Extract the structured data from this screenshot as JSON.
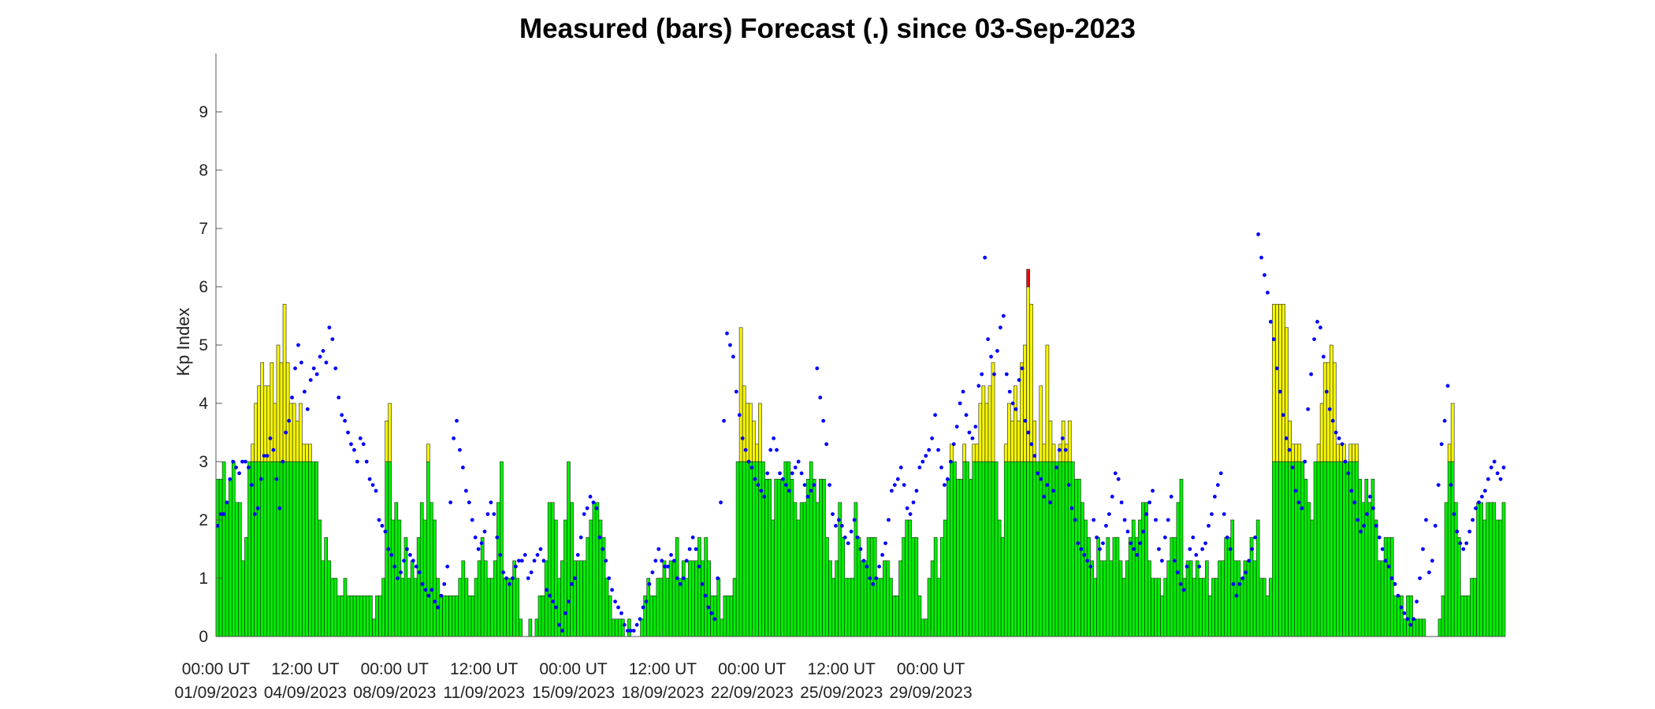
{
  "chart_data": {
    "type": "bar",
    "title": "Measured (bars) Forecast (.) since 03-Sep-2023",
    "ylabel": "Kp Index",
    "xlabel": "",
    "ylim": [
      0,
      10
    ],
    "yticks": [
      0,
      1,
      2,
      3,
      4,
      5,
      6,
      7,
      8,
      9
    ],
    "xtick_labels": [
      {
        "line1": "00:00 UT",
        "line2": "01/09/2023"
      },
      {
        "line1": "12:00 UT",
        "line2": "04/09/2023"
      },
      {
        "line1": "00:00 UT",
        "line2": "08/09/2023"
      },
      {
        "line1": "12:00 UT",
        "line2": "11/09/2023"
      },
      {
        "line1": "00:00 UT",
        "line2": "15/09/2023"
      },
      {
        "line1": "12:00 UT",
        "line2": "18/09/2023"
      },
      {
        "line1": "00:00 UT",
        "line2": "22/09/2023"
      },
      {
        "line1": "12:00 UT",
        "line2": "25/09/2023"
      },
      {
        "line1": "00:00 UT",
        "line2": "29/09/2023"
      }
    ],
    "interval_hours": 3,
    "grid": false,
    "colors": {
      "quiet": "#00ee00",
      "active": "#f5f500",
      "storm": "#ff0000",
      "forecast": "#0000ff",
      "bar_edge": "#222222"
    },
    "thresholds": [
      3,
      6
    ],
    "series": [
      {
        "values": [
          2.7,
          2.7,
          3.0,
          2.3,
          2.7,
          3.0,
          2.3,
          2.3,
          1.3,
          1.7,
          3.0,
          3.3,
          4.0,
          4.3,
          4.7,
          4.3,
          4.3,
          4.7,
          4.0,
          5.0,
          4.7,
          5.7,
          4.7,
          4.0,
          4.0,
          3.7,
          4.0,
          3.3,
          3.3,
          3.3,
          3.0,
          3.0,
          2.0,
          1.3,
          1.7,
          1.3,
          1.0,
          1.0,
          0.7,
          0.7,
          1.0,
          0.7,
          0.7,
          0.7,
          0.7,
          0.7,
          0.7,
          0.7,
          0.7,
          0.3,
          0.7,
          0.7,
          1.0,
          3.7,
          4.0,
          2.0,
          2.3,
          2.0,
          1.0,
          1.7,
          1.0,
          1.3,
          1.0,
          1.7,
          2.3,
          2.0,
          3.3,
          2.3,
          2.0,
          1.0,
          0.7,
          0.7,
          0.7,
          0.7,
          0.7,
          0.7,
          1.0,
          1.3,
          1.0,
          0.7,
          0.7,
          1.0,
          1.3,
          1.7,
          1.3,
          1.0,
          1.0,
          1.3,
          2.3,
          3.0,
          1.0,
          1.0,
          1.0,
          1.3,
          1.0,
          0.3,
          0.0,
          0.0,
          0.3,
          0.0,
          0.3,
          0.7,
          0.7,
          1.3,
          2.3,
          2.3,
          2.0,
          1.0,
          1.3,
          2.0,
          3.0,
          2.3,
          1.3,
          1.3,
          1.3,
          1.3,
          1.7,
          2.0,
          2.3,
          2.3,
          2.0,
          1.7,
          1.0,
          0.7,
          0.3,
          0.3,
          0.3,
          0.3,
          0.0,
          0.3,
          0.0,
          0.0,
          0.0,
          0.3,
          0.7,
          1.0,
          0.7,
          0.7,
          1.0,
          1.0,
          1.3,
          1.0,
          1.3,
          1.3,
          1.7,
          1.0,
          1.3,
          1.0,
          1.3,
          1.3,
          1.3,
          1.7,
          1.3,
          1.7,
          1.3,
          0.7,
          0.7,
          1.0,
          0.3,
          0.7,
          0.7,
          0.7,
          1.0,
          3.0,
          5.3,
          4.3,
          4.0,
          4.0,
          3.7,
          3.3,
          4.0,
          3.0,
          2.7,
          2.7,
          2.0,
          2.7,
          2.7,
          2.7,
          3.0,
          3.0,
          2.7,
          2.3,
          2.0,
          2.3,
          2.3,
          2.7,
          3.0,
          2.7,
          2.3,
          2.7,
          2.7,
          1.7,
          1.3,
          1.0,
          1.3,
          2.3,
          1.7,
          1.0,
          1.0,
          1.0,
          2.3,
          1.7,
          1.3,
          1.3,
          1.7,
          1.7,
          1.7,
          1.0,
          1.0,
          1.3,
          1.3,
          1.0,
          0.7,
          0.7,
          1.3,
          1.7,
          2.0,
          2.0,
          1.7,
          1.7,
          0.7,
          0.3,
          0.3,
          1.0,
          1.3,
          1.7,
          1.0,
          1.7,
          2.0,
          2.7,
          3.3,
          3.0,
          2.7,
          2.7,
          3.3,
          3.0,
          2.7,
          3.3,
          3.3,
          4.0,
          4.3,
          4.0,
          4.3,
          4.7,
          3.0,
          2.0,
          1.7,
          3.3,
          4.0,
          3.7,
          4.3,
          3.7,
          4.7,
          5.0,
          6.3,
          5.7,
          3.7,
          3.0,
          4.3,
          3.3,
          5.0,
          3.7,
          3.3,
          3.0,
          3.3,
          3.7,
          3.3,
          3.7,
          3.0,
          2.7,
          2.7,
          2.3,
          2.0,
          1.7,
          1.3,
          1.0,
          1.7,
          1.3,
          1.3,
          1.7,
          1.3,
          1.7,
          1.7,
          1.3,
          1.0,
          1.3,
          1.7,
          2.0,
          1.7,
          2.0,
          2.3,
          2.3,
          1.3,
          1.0,
          1.0,
          1.0,
          0.7,
          1.0,
          1.3,
          1.7,
          1.7,
          2.3,
          2.7,
          1.0,
          1.3,
          1.3,
          1.0,
          1.3,
          1.0,
          1.0,
          1.3,
          0.7,
          1.0,
          1.0,
          1.3,
          1.3,
          1.7,
          1.7,
          2.0,
          1.3,
          1.3,
          1.0,
          1.3,
          1.3,
          1.7,
          1.3,
          2.0,
          1.0,
          1.0,
          0.7,
          1.0,
          5.7,
          5.7,
          5.7,
          5.7,
          5.3,
          3.7,
          3.3,
          3.3,
          3.3,
          3.0,
          2.7,
          2.3,
          2.0,
          3.0,
          3.3,
          4.0,
          4.7,
          4.7,
          5.0,
          4.7,
          3.3,
          3.3,
          3.3,
          3.0,
          3.3,
          3.3,
          3.3,
          2.7,
          2.3,
          2.7,
          2.3,
          2.7,
          2.0,
          1.3,
          1.3,
          1.7,
          1.7,
          1.7,
          0.7,
          0.7,
          0.7,
          0.3,
          0.7,
          0.7,
          0.3,
          0.3,
          0.3,
          0.3,
          0.0,
          0.0,
          0.0,
          0.0,
          0.3,
          0.7,
          2.3,
          3.3,
          4.0,
          2.3,
          1.7,
          0.7,
          0.7,
          0.7,
          1.0,
          1.0,
          2.3,
          2.3,
          2.0,
          2.3,
          2.3,
          2.3,
          2.0,
          2.0,
          2.3
        ],
        "forecast": [
          1.9,
          2.1,
          2.1,
          2.3,
          2.7,
          3.0,
          2.9,
          2.8,
          3.0,
          3.0,
          2.9,
          2.6,
          2.1,
          2.2,
          2.7,
          3.1,
          3.1,
          3.4,
          3.2,
          2.7,
          2.2,
          3.0,
          3.5,
          3.7,
          4.1,
          4.6,
          5.0,
          4.7,
          4.2,
          3.9,
          4.4,
          4.6,
          4.5,
          4.8,
          4.9,
          4.7,
          5.3,
          5.1,
          4.6,
          4.1,
          3.8,
          3.7,
          3.5,
          3.3,
          3.2,
          3.0,
          3.4,
          3.3,
          3.0,
          2.7,
          2.6,
          2.5,
          2.0,
          1.9,
          1.8,
          1.5,
          1.4,
          1.2,
          1.0,
          1.1,
          1.3,
          1.5,
          1.4,
          1.3,
          1.2,
          1.1,
          0.9,
          0.8,
          0.7,
          0.8,
          0.6,
          0.5,
          0.7,
          0.9,
          1.2,
          2.3,
          3.4,
          3.7,
          3.2,
          2.9,
          2.5,
          2.3,
          2.0,
          1.7,
          1.5,
          1.6,
          1.8,
          2.1,
          2.3,
          2.1,
          1.7,
          1.4,
          1.1,
          1.0,
          0.9,
          1.0,
          1.2,
          1.3,
          1.3,
          1.4,
          1.0,
          1.1,
          1.3,
          1.4,
          1.5,
          1.3,
          0.8,
          0.7,
          0.6,
          0.5,
          0.2,
          0.1,
          0.4,
          0.6,
          0.9,
          1.0,
          1.4,
          1.7,
          2.1,
          2.2,
          2.4,
          2.3,
          2.2,
          1.7,
          1.5,
          1.3,
          1.0,
          0.8,
          0.6,
          0.5,
          0.4,
          0.2,
          0.1,
          0.1,
          0.1,
          0.2,
          0.3,
          0.5,
          0.6,
          0.9,
          1.1,
          1.3,
          1.5,
          1.3,
          1.2,
          1.2,
          1.4,
          1.3,
          1.0,
          0.9,
          1.0,
          1.3,
          1.5,
          1.7,
          1.5,
          1.2,
          0.9,
          0.7,
          0.5,
          0.4,
          0.3,
          1.0,
          2.3,
          3.7,
          5.2,
          5.0,
          4.8,
          4.2,
          3.8,
          3.4,
          3.2,
          3.0,
          2.9,
          2.7,
          2.6,
          2.5,
          2.4,
          2.8,
          3.2,
          3.4,
          3.2,
          2.8,
          2.7,
          2.6,
          2.5,
          2.8,
          2.9,
          3.0,
          2.8,
          2.6,
          2.4,
          2.5,
          2.6,
          4.6,
          4.1,
          3.7,
          3.3,
          2.6,
          2.1,
          1.9,
          2.0,
          1.9,
          1.7,
          1.6,
          1.8,
          2.0,
          1.7,
          1.5,
          1.3,
          1.2,
          1.0,
          0.9,
          1.0,
          1.2,
          1.4,
          1.6,
          2.0,
          2.5,
          2.6,
          2.7,
          2.9,
          2.6,
          2.2,
          2.1,
          2.3,
          2.5,
          2.9,
          3.0,
          3.1,
          3.2,
          3.4,
          3.8,
          3.2,
          2.9,
          2.6,
          2.7,
          3.0,
          3.3,
          3.6,
          4.0,
          4.2,
          3.8,
          3.5,
          3.4,
          3.6,
          4.3,
          4.5,
          6.5,
          5.1,
          4.8,
          4.5,
          4.9,
          5.3,
          5.5,
          4.5,
          4.2,
          4.0,
          3.9,
          4.4,
          4.6,
          3.7,
          3.5,
          3.3,
          3.1,
          2.8,
          2.7,
          2.4,
          2.6,
          2.3,
          2.5,
          2.9,
          3.2,
          3.4,
          3.2,
          2.6,
          2.2,
          2.0,
          1.6,
          1.5,
          1.4,
          1.3,
          1.2,
          2.0,
          1.7,
          1.5,
          1.6,
          1.9,
          2.1,
          2.4,
          2.8,
          2.7,
          2.3,
          2.0,
          1.8,
          1.6,
          1.5,
          1.4,
          1.6,
          1.8,
          2.1,
          2.3,
          2.5,
          2.0,
          1.5,
          1.3,
          1.7,
          2.0,
          2.4,
          1.3,
          1.1,
          0.9,
          0.8,
          1.2,
          1.5,
          1.7,
          1.4,
          1.2,
          1.5,
          1.6,
          1.9,
          2.1,
          2.4,
          2.6,
          2.8,
          2.1,
          1.7,
          1.5,
          0.9,
          0.7,
          0.9,
          1.0,
          1.1,
          1.3,
          1.5,
          1.7,
          6.9,
          6.5,
          6.2,
          5.9,
          5.4,
          5.1,
          4.6,
          4.2,
          3.8,
          3.4,
          3.2,
          2.9,
          2.5,
          2.3,
          2.2,
          3.0,
          3.9,
          4.5,
          5.1,
          5.4,
          5.3,
          4.8,
          4.2,
          3.9,
          3.7,
          3.5,
          3.4,
          3.3,
          3.0,
          2.8,
          2.5,
          2.3,
          2.0,
          1.8,
          1.9,
          2.1,
          2.4,
          2.2,
          1.9,
          1.7,
          1.5,
          1.3,
          1.2,
          1.0,
          0.9,
          0.7,
          0.5,
          0.4,
          0.3,
          0.2,
          0.3,
          0.6,
          1.0,
          1.5,
          2.0,
          1.1,
          1.3,
          1.9,
          2.6,
          3.3,
          3.7,
          4.3,
          2.6,
          2.1,
          1.8,
          1.6,
          1.5,
          1.6,
          1.8,
          2.0,
          2.2,
          2.3,
          2.4,
          2.5,
          2.7,
          2.9,
          3.0,
          2.8,
          2.7,
          2.9
        ]
      }
    ]
  }
}
